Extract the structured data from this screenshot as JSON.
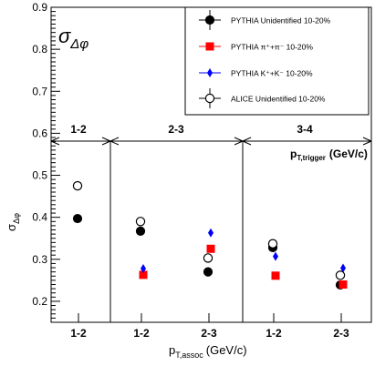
{
  "chart_data": {
    "type": "scatter",
    "ylabel_main": "σ",
    "ylabel_sub": "Δφ",
    "xlabel_main": "p",
    "xlabel_sub": "T,assoc",
    "xlabel_unit": "(GeV/c)",
    "plot_symbol_main": "σ",
    "plot_symbol_sub": "Δφ",
    "ylim": [
      0.15,
      0.9
    ],
    "y_ticks": [
      "0.2",
      "0.3",
      "0.4",
      "0.5",
      "0.6",
      "0.7",
      "0.8",
      "0.9"
    ],
    "trigger_bins": [
      "1-2",
      "2-3",
      "3-4"
    ],
    "trigger_axis_label_main": "p",
    "trigger_axis_label_sub": "T,trigger",
    "trigger_axis_label_unit": "(GeV/c)",
    "x_categories": [
      "1-2",
      "1-2",
      "2-3",
      "1-2",
      "2-3"
    ],
    "legend_position": "top-right",
    "series": [
      {
        "name": "PYTHIA Unidentified 10-20%",
        "marker": "filled-circle",
        "color": "#000000",
        "values": [
          0.397,
          0.367,
          0.27,
          0.328,
          0.239
        ]
      },
      {
        "name": "PYTHIA π⁺+π⁻ 10-20%",
        "marker": "filled-square",
        "color": "#ff0000",
        "values": [
          null,
          0.263,
          0.325,
          0.261,
          0.24
        ]
      },
      {
        "name": "PYTHIA K⁺+K⁻ 10-20%",
        "marker": "filled-diamond",
        "color": "#0000ff",
        "values": [
          null,
          0.278,
          0.363,
          0.307,
          0.279
        ]
      },
      {
        "name": "ALICE Unidentified 10-20%",
        "marker": "open-circle",
        "color": "#000000",
        "values": [
          0.475,
          0.39,
          0.303,
          0.337,
          0.262
        ]
      }
    ]
  }
}
